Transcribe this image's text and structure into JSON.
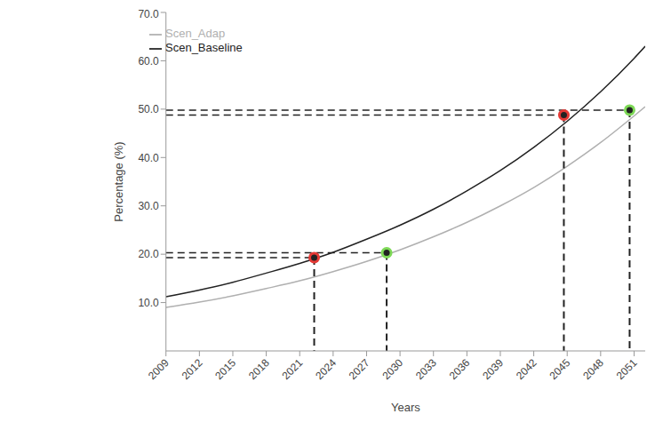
{
  "chart_data": {
    "type": "line",
    "x_label": "Years",
    "y_label": "Percentage (%)",
    "x": [
      2009,
      2012,
      2015,
      2018,
      2021,
      2024,
      2027,
      2030,
      2033,
      2036,
      2039,
      2042,
      2045,
      2048,
      2051,
      2052
    ],
    "series": [
      {
        "name": "Scen_Baseline",
        "color": "#222222",
        "values": [
          11.2,
          12.6,
          14.2,
          16.1,
          18.1,
          20.4,
          23.1,
          26.0,
          29.3,
          33.1,
          37.3,
          42.1,
          47.5,
          53.6,
          60.5,
          63.0
        ]
      },
      {
        "name": "Scen_Adap",
        "color": "#b0b0b0",
        "values": [
          9.0,
          10.1,
          11.4,
          12.9,
          14.5,
          16.4,
          18.5,
          20.9,
          23.6,
          26.6,
          30.0,
          33.8,
          38.2,
          43.1,
          48.6,
          50.5
        ]
      }
    ],
    "xlim": [
      2009,
      2052
    ],
    "xticks": [
      2009,
      2012,
      2015,
      2018,
      2021,
      2024,
      2027,
      2030,
      2033,
      2036,
      2039,
      2042,
      2045,
      2048,
      2051
    ],
    "ylim": [
      0,
      70
    ],
    "yticks": [
      {
        "value": 10,
        "label": "10.0"
      },
      {
        "value": 20,
        "label": "20.0"
      },
      {
        "value": 30,
        "label": "30.0"
      },
      {
        "value": 40,
        "label": "40.0"
      },
      {
        "value": 50,
        "label": "50.0"
      },
      {
        "value": 60,
        "label": "60.0"
      },
      {
        "value": 70,
        "label": "70.0"
      }
    ],
    "legend": "upper left",
    "grid": false,
    "highlights": [
      {
        "x": 2022.3,
        "y": 19.3,
        "color": "#e53935"
      },
      {
        "x": 2028.8,
        "y": 20.3,
        "color": "#7ed957"
      },
      {
        "x": 2044.7,
        "y": 48.8,
        "color": "#e53935"
      },
      {
        "x": 2050.6,
        "y": 49.8,
        "color": "#7ed957"
      }
    ]
  }
}
